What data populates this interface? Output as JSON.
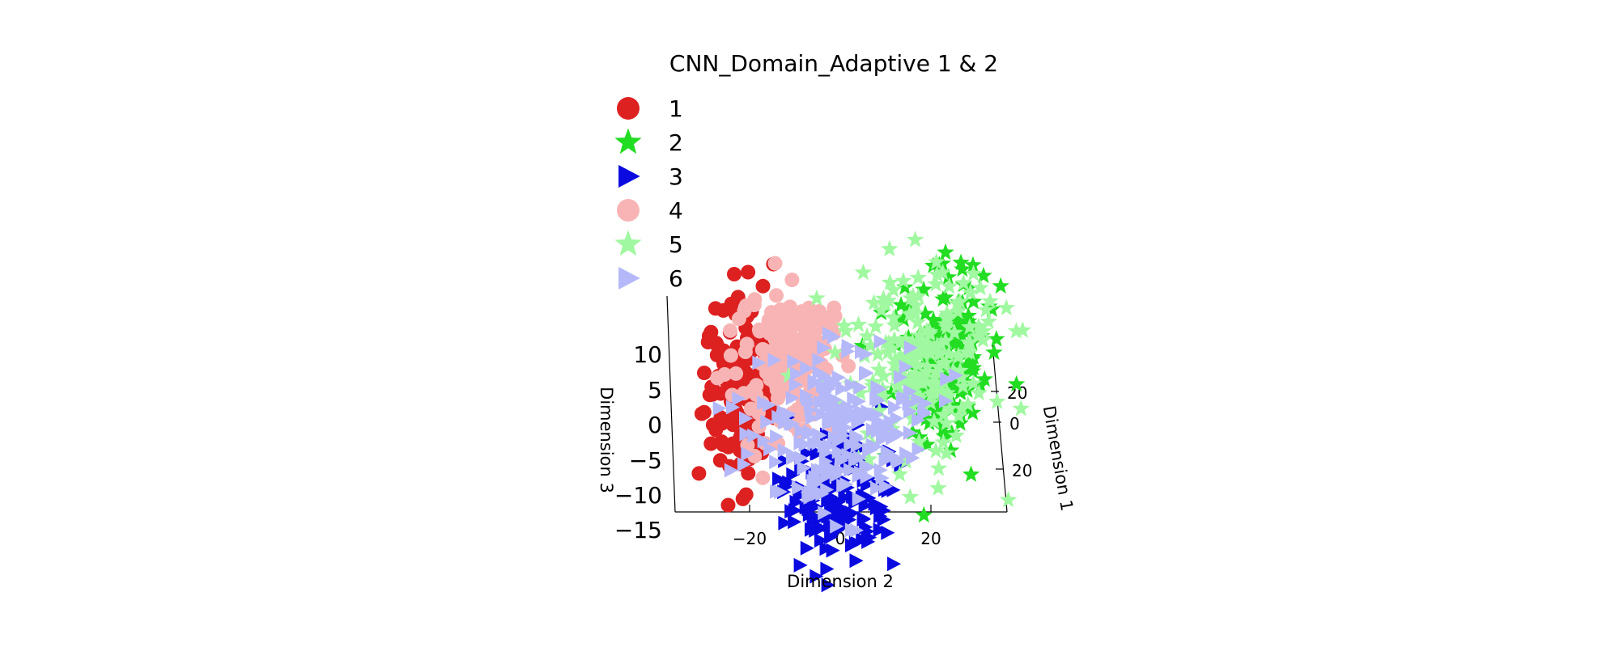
{
  "chart_data": {
    "type": "scatter",
    "projection": "3d",
    "title": "CNN_Domain_Adaptive 1 & 2",
    "xlabel": "Dimension 2",
    "ylabel": "Dimension 1",
    "zlabel": "Dimension 3",
    "x_ticks": [
      "−20",
      "0",
      "20"
    ],
    "y_ticks": [
      "20",
      "0",
      "20"
    ],
    "z_ticks": [
      "10",
      "5",
      "0",
      "−5",
      "−10",
      "−15"
    ],
    "xlim": [
      -36,
      36
    ],
    "ylim": [
      -30,
      30
    ],
    "zlim": [
      -15,
      12
    ],
    "grid": false,
    "legend_position": "top-left",
    "series": [
      {
        "name": "1",
        "marker": "circle",
        "color": "#dd2020",
        "center": {
          "x": -22,
          "y": 0,
          "z": 5
        },
        "spread": {
          "x": 4,
          "y": 8,
          "z": 5
        },
        "count": 150
      },
      {
        "name": "2",
        "marker": "star",
        "color": "#22dd22",
        "center": {
          "x": 22,
          "y": 10,
          "z": 5
        },
        "spread": {
          "x": 5,
          "y": 8,
          "z": 5
        },
        "count": 180
      },
      {
        "name": "3",
        "marker": "triangle",
        "color": "#0a0ae0",
        "center": {
          "x": 0,
          "y": -12,
          "z": -5
        },
        "spread": {
          "x": 6,
          "y": 6,
          "z": 4
        },
        "count": 150
      },
      {
        "name": "4",
        "marker": "circle",
        "color": "#f8b4b4",
        "center": {
          "x": -12,
          "y": 5,
          "z": 7
        },
        "spread": {
          "x": 6,
          "y": 7,
          "z": 4
        },
        "count": 170
      },
      {
        "name": "5",
        "marker": "star",
        "color": "#a0f8a0",
        "center": {
          "x": 18,
          "y": 8,
          "z": 5
        },
        "spread": {
          "x": 8,
          "y": 8,
          "z": 5
        },
        "count": 200
      },
      {
        "name": "6",
        "marker": "triangle",
        "color": "#b4b8f8",
        "center": {
          "x": 0,
          "y": -3,
          "z": 0
        },
        "spread": {
          "x": 9,
          "y": 6,
          "z": 5
        },
        "count": 220
      }
    ]
  }
}
